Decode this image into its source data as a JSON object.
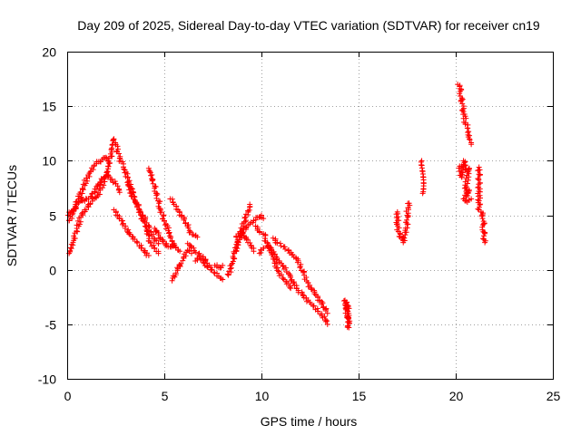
{
  "chart_data": {
    "type": "scatter",
    "title": "Day 209 of 2025, Sidereal Day-to-day VTEC variation (SDTVAR) for receiver cn19",
    "xlabel": "GPS time / hours",
    "ylabel": "SDTVAR / TECUs",
    "xlim": [
      0,
      25
    ],
    "ylim": [
      -10,
      20
    ],
    "xticks": [
      0,
      5,
      10,
      15,
      20,
      25
    ],
    "yticks": [
      -10,
      -5,
      0,
      5,
      10,
      15,
      20
    ],
    "xtick_labels": [
      "0",
      "5",
      "10",
      "15",
      "20",
      "25"
    ],
    "ytick_labels": [
      "-10",
      "-5",
      "0",
      "5",
      "10",
      "15",
      "20"
    ],
    "grid": true,
    "marker": "plus",
    "color": "#ff0000",
    "series": [
      {
        "name": "SDTVAR",
        "tracks": [
          [
            [
              0.1,
              1.5
            ],
            [
              0.3,
              2.5
            ],
            [
              0.5,
              3.8
            ],
            [
              0.7,
              4.8
            ],
            [
              0.9,
              5.5
            ],
            [
              1.1,
              6.0
            ],
            [
              1.3,
              6.3
            ],
            [
              1.5,
              6.6
            ],
            [
              1.7,
              7.3
            ],
            [
              1.9,
              8.3
            ],
            [
              2.1,
              9.5
            ],
            [
              2.3,
              10.8
            ],
            [
              2.4,
              12.0
            ],
            [
              2.5,
              11.5
            ],
            [
              2.7,
              10.2
            ],
            [
              2.9,
              9.4
            ],
            [
              3.1,
              8.5
            ],
            [
              3.3,
              7.5
            ],
            [
              3.5,
              6.3
            ],
            [
              3.7,
              5.6
            ],
            [
              3.9,
              4.5
            ],
            [
              4.1,
              3.3
            ],
            [
              4.3,
              2.5
            ],
            [
              4.5,
              2.0
            ],
            [
              4.7,
              1.5
            ]
          ],
          [
            [
              0.05,
              5.0
            ],
            [
              0.2,
              5.3
            ],
            [
              0.4,
              5.7
            ],
            [
              0.6,
              6.5
            ],
            [
              0.8,
              7.4
            ],
            [
              1.0,
              8.4
            ],
            [
              1.2,
              9.0
            ],
            [
              1.4,
              9.6
            ],
            [
              1.6,
              9.9
            ],
            [
              1.8,
              10.1
            ],
            [
              2.0,
              10.3
            ],
            [
              2.1,
              10.0
            ]
          ],
          [
            [
              0.1,
              4.5
            ],
            [
              0.3,
              5.2
            ],
            [
              0.5,
              6.0
            ],
            [
              0.7,
              6.6
            ],
            [
              0.9,
              6.3
            ],
            [
              1.1,
              6.5
            ],
            [
              1.3,
              7.0
            ],
            [
              1.5,
              7.4
            ],
            [
              1.7,
              8.0
            ],
            [
              1.9,
              8.5
            ],
            [
              2.1,
              8.7
            ],
            [
              2.3,
              8.3
            ],
            [
              2.5,
              7.9
            ],
            [
              2.7,
              7.1
            ]
          ],
          [
            [
              2.4,
              5.5
            ],
            [
              2.6,
              5.0
            ],
            [
              2.8,
              4.5
            ],
            [
              3.0,
              4.0
            ],
            [
              3.2,
              3.4
            ],
            [
              3.4,
              3.0
            ],
            [
              3.6,
              2.5
            ],
            [
              3.8,
              2.0
            ],
            [
              4.0,
              1.6
            ],
            [
              4.2,
              1.3
            ]
          ],
          [
            [
              3.1,
              8.0
            ],
            [
              3.3,
              7.0
            ],
            [
              3.5,
              6.2
            ],
            [
              3.7,
              5.5
            ],
            [
              3.9,
              5.0
            ],
            [
              4.1,
              4.3
            ],
            [
              4.3,
              3.5
            ],
            [
              4.5,
              2.8
            ],
            [
              4.7,
              2.4
            ]
          ],
          [
            [
              4.2,
              9.3
            ],
            [
              4.4,
              8.3
            ],
            [
              4.6,
              7.0
            ],
            [
              4.8,
              5.6
            ],
            [
              5.0,
              4.5
            ],
            [
              5.2,
              3.6
            ],
            [
              5.4,
              2.6
            ],
            [
              5.6,
              2.0
            ],
            [
              5.8,
              1.7
            ]
          ],
          [
            [
              5.3,
              6.5
            ],
            [
              5.5,
              6.0
            ],
            [
              5.7,
              5.5
            ],
            [
              5.9,
              5.0
            ],
            [
              6.1,
              4.3
            ],
            [
              6.3,
              3.6
            ],
            [
              6.5,
              3.2
            ],
            [
              6.7,
              3.0
            ]
          ],
          [
            [
              4.5,
              3.8
            ],
            [
              4.7,
              3.2
            ],
            [
              4.9,
              2.6
            ],
            [
              5.1,
              2.2
            ],
            [
              5.3,
              2.1
            ],
            [
              5.5,
              2.4
            ]
          ],
          [
            [
              5.4,
              -1.0
            ],
            [
              5.6,
              -0.3
            ],
            [
              5.8,
              0.4
            ],
            [
              6.0,
              1.2
            ],
            [
              6.2,
              1.8
            ],
            [
              6.4,
              1.5
            ]
          ],
          [
            [
              6.2,
              2.4
            ],
            [
              6.4,
              2.0
            ],
            [
              6.6,
              1.6
            ],
            [
              6.8,
              1.5
            ],
            [
              7.0,
              1.2
            ],
            [
              7.2,
              0.6
            ],
            [
              7.4,
              0.2
            ],
            [
              7.6,
              -0.3
            ],
            [
              7.8,
              -0.6
            ],
            [
              8.0,
              -0.9
            ]
          ],
          [
            [
              6.6,
              0.8
            ],
            [
              6.8,
              1.2
            ],
            [
              7.0,
              0.8
            ],
            [
              7.2,
              0.3
            ],
            [
              7.4,
              0.0
            ]
          ],
          [
            [
              7.6,
              0.4
            ],
            [
              7.8,
              0.2
            ],
            [
              8.0,
              0.4
            ]
          ],
          [
            [
              8.3,
              -0.5
            ],
            [
              8.5,
              0.6
            ],
            [
              8.7,
              2.0
            ],
            [
              8.9,
              3.3
            ],
            [
              9.1,
              4.3
            ],
            [
              9.3,
              5.4
            ],
            [
              9.4,
              6.0
            ]
          ],
          [
            [
              8.6,
              1.5
            ],
            [
              8.8,
              2.5
            ],
            [
              9.0,
              3.2
            ],
            [
              9.2,
              3.7
            ],
            [
              9.4,
              4.2
            ],
            [
              9.6,
              4.5
            ],
            [
              9.8,
              4.8
            ],
            [
              10.0,
              5.0
            ],
            [
              10.1,
              4.7
            ]
          ],
          [
            [
              8.7,
              3.0
            ],
            [
              8.9,
              3.5
            ],
            [
              9.1,
              3.1
            ],
            [
              9.3,
              2.5
            ],
            [
              9.5,
              2.0
            ],
            [
              9.6,
              1.7
            ]
          ],
          [
            [
              9.7,
              4.0
            ],
            [
              9.9,
              3.5
            ],
            [
              10.1,
              3.3
            ],
            [
              10.3,
              2.5
            ],
            [
              10.5,
              1.6
            ],
            [
              10.7,
              0.6
            ],
            [
              10.9,
              -0.3
            ],
            [
              11.1,
              -0.8
            ],
            [
              11.3,
              -1.3
            ],
            [
              11.5,
              -1.7
            ]
          ],
          [
            [
              9.9,
              1.5
            ],
            [
              10.1,
              2.0
            ],
            [
              10.3,
              2.2
            ],
            [
              10.5,
              2.0
            ],
            [
              10.7,
              1.4
            ],
            [
              10.9,
              0.8
            ],
            [
              11.1,
              0.3
            ],
            [
              11.3,
              -0.2
            ],
            [
              11.5,
              -0.7
            ],
            [
              11.7,
              -1.4
            ],
            [
              11.9,
              -1.9
            ],
            [
              12.1,
              -2.2
            ],
            [
              12.3,
              -2.6
            ],
            [
              12.5,
              -3.0
            ],
            [
              12.7,
              -3.3
            ],
            [
              12.9,
              -3.8
            ],
            [
              13.1,
              -4.2
            ],
            [
              13.3,
              -4.6
            ],
            [
              13.4,
              -5.0
            ]
          ],
          [
            [
              10.6,
              2.9
            ],
            [
              10.8,
              2.5
            ],
            [
              11.0,
              2.2
            ],
            [
              11.2,
              2.1
            ],
            [
              11.4,
              1.8
            ],
            [
              11.6,
              1.4
            ],
            [
              11.8,
              1.0
            ],
            [
              12.0,
              0.3
            ],
            [
              12.2,
              -0.5
            ],
            [
              12.4,
              -1.2
            ],
            [
              12.6,
              -1.8
            ],
            [
              12.8,
              -2.3
            ],
            [
              13.0,
              -2.8
            ],
            [
              13.2,
              -3.4
            ],
            [
              13.4,
              -4.0
            ]
          ],
          [
            [
              14.3,
              -2.8
            ],
            [
              14.35,
              -3.5
            ],
            [
              14.4,
              -4.2
            ],
            [
              14.45,
              -4.8
            ],
            [
              14.5,
              -5.3
            ],
            [
              14.4,
              -3.0
            ],
            [
              14.45,
              -3.8
            ]
          ],
          [
            [
              17.0,
              5.3
            ],
            [
              17.0,
              4.2
            ],
            [
              17.05,
              3.5
            ],
            [
              17.3,
              2.5
            ],
            [
              17.35,
              2.9
            ],
            [
              17.4,
              3.2
            ],
            [
              17.5,
              4.2
            ],
            [
              17.5,
              5.0
            ],
            [
              17.55,
              5.7
            ],
            [
              17.6,
              6.1
            ]
          ],
          [
            [
              18.25,
              10.0
            ],
            [
              18.3,
              7.0
            ]
          ],
          [
            [
              20.1,
              17.0
            ],
            [
              20.2,
              16.8
            ],
            [
              20.4,
              14.5
            ],
            [
              20.5,
              13.5
            ],
            [
              20.6,
              13.0
            ],
            [
              20.7,
              12.0
            ],
            [
              20.8,
              11.5
            ]
          ],
          [
            [
              20.2,
              9.5
            ],
            [
              20.3,
              8.5
            ],
            [
              20.4,
              10.0
            ],
            [
              20.5,
              9.6
            ],
            [
              20.6,
              9.0
            ],
            [
              20.7,
              9.3
            ],
            [
              20.5,
              7.5
            ],
            [
              20.6,
              6.8
            ],
            [
              20.7,
              7.3
            ],
            [
              20.4,
              6.5
            ],
            [
              20.6,
              6.2
            ],
            [
              20.8,
              6.5
            ]
          ],
          [
            [
              21.2,
              9.4
            ],
            [
              21.2,
              5.5
            ],
            [
              21.3,
              5.3
            ],
            [
              21.4,
              5.2
            ],
            [
              21.45,
              2.8
            ],
            [
              21.5,
              2.5
            ]
          ]
        ]
      }
    ]
  }
}
